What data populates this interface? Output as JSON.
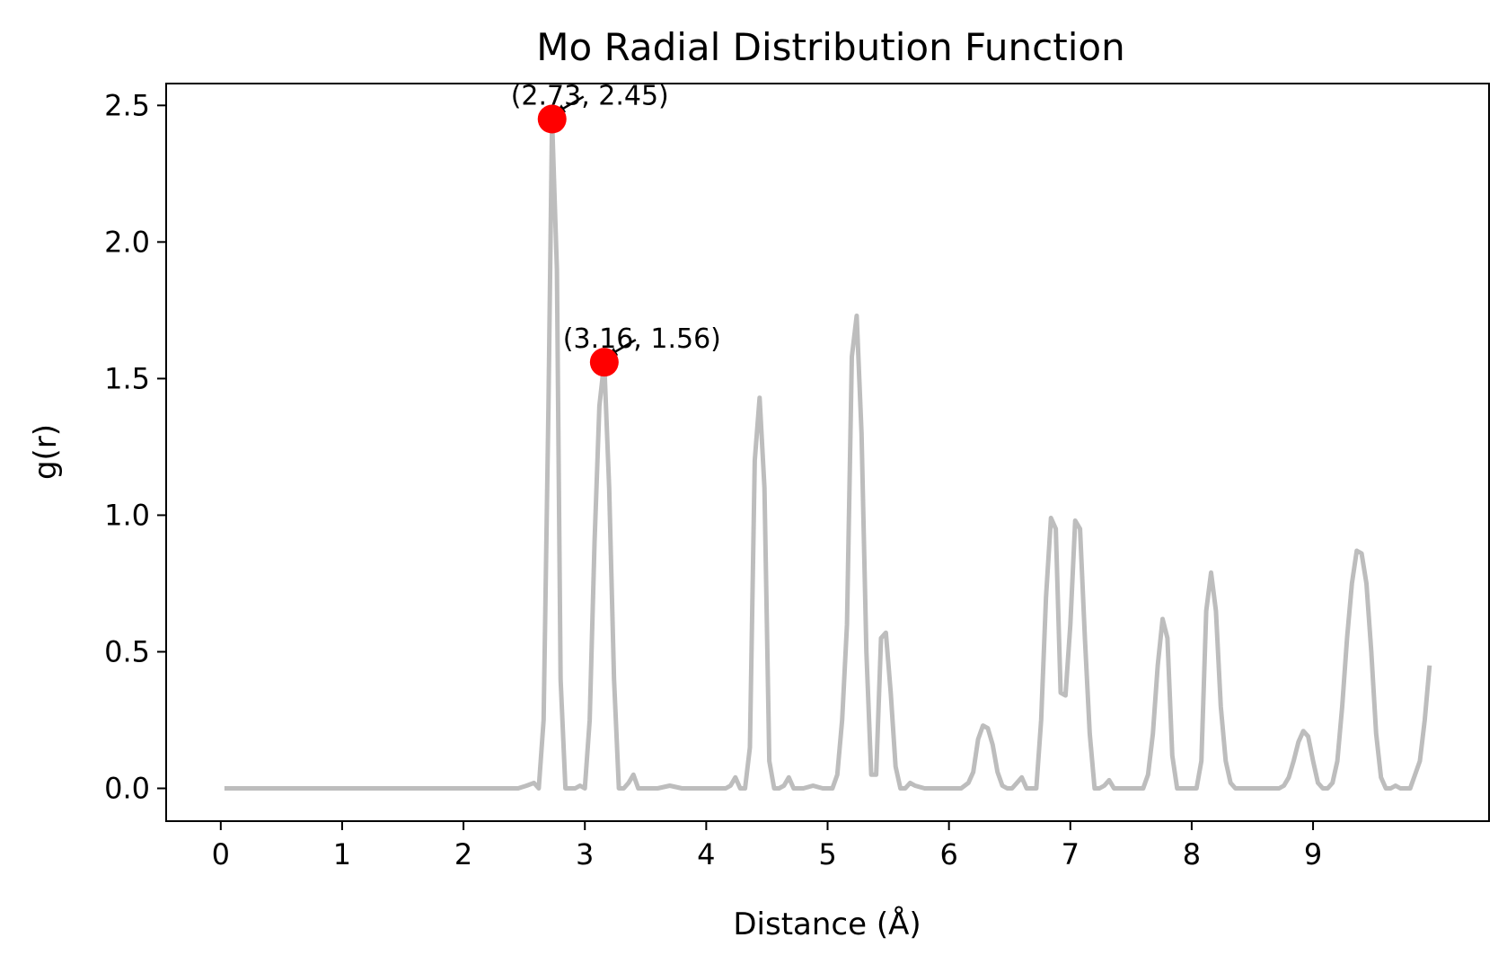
{
  "chart_data": {
    "type": "line",
    "title": "Mo Radial Distribution Function",
    "xlabel": "Distance (Å)",
    "ylabel": "g(r)",
    "xlim": [
      -0.45,
      10.45
    ],
    "ylim": [
      -0.12,
      2.58
    ],
    "xticks": [
      0,
      1,
      2,
      3,
      4,
      5,
      6,
      7,
      8,
      9
    ],
    "yticks": [
      0.0,
      0.5,
      1.0,
      1.5,
      2.0,
      2.5
    ],
    "xtick_labels": [
      "0",
      "1",
      "2",
      "3",
      "4",
      "5",
      "6",
      "7",
      "8",
      "9"
    ],
    "ytick_labels": [
      "0.0",
      "0.5",
      "1.0",
      "1.5",
      "2.0",
      "2.5"
    ],
    "grid": false,
    "line_color": "#bdbdbd",
    "marker_color": "#ff0000",
    "series": [
      {
        "x": [
          0.03,
          0.5,
          1.0,
          1.5,
          2.0,
          2.3,
          2.45,
          2.52,
          2.58,
          2.62,
          2.66,
          2.7,
          2.73,
          2.77,
          2.8,
          2.84,
          2.88,
          2.92,
          2.96,
          3.0,
          3.04,
          3.08,
          3.12,
          3.16,
          3.2,
          3.24,
          3.28,
          3.32,
          3.36,
          3.4,
          3.44,
          3.5,
          3.6,
          3.7,
          3.8,
          3.9,
          4.0,
          4.1,
          4.16,
          4.2,
          4.24,
          4.28,
          4.32,
          4.36,
          4.4,
          4.44,
          4.48,
          4.52,
          4.56,
          4.6,
          4.64,
          4.68,
          4.72,
          4.76,
          4.8,
          4.88,
          4.96,
          5.04,
          5.08,
          5.12,
          5.16,
          5.2,
          5.24,
          5.28,
          5.32,
          5.36,
          5.4,
          5.44,
          5.48,
          5.52,
          5.56,
          5.6,
          5.64,
          5.68,
          5.72,
          5.8,
          5.9,
          6.0,
          6.1,
          6.16,
          6.2,
          6.24,
          6.28,
          6.32,
          6.36,
          6.4,
          6.44,
          6.48,
          6.52,
          6.56,
          6.6,
          6.64,
          6.68,
          6.72,
          6.76,
          6.8,
          6.84,
          6.88,
          6.92,
          6.96,
          7.0,
          7.04,
          7.08,
          7.12,
          7.16,
          7.2,
          7.24,
          7.28,
          7.32,
          7.36,
          7.4,
          7.48,
          7.56,
          7.6,
          7.64,
          7.68,
          7.72,
          7.76,
          7.8,
          7.84,
          7.88,
          7.92,
          7.96,
          8.04,
          8.08,
          8.12,
          8.16,
          8.2,
          8.24,
          8.28,
          8.32,
          8.36,
          8.4,
          8.48,
          8.56,
          8.64,
          8.72,
          8.76,
          8.8,
          8.84,
          8.88,
          8.92,
          8.96,
          9.0,
          9.04,
          9.08,
          9.12,
          9.16,
          9.2,
          9.24,
          9.28,
          9.32,
          9.36,
          9.4,
          9.44,
          9.48,
          9.52,
          9.56,
          9.6,
          9.64,
          9.68,
          9.72,
          9.76,
          9.8,
          9.84,
          9.88,
          9.92,
          9.96
        ],
        "y": [
          0.0,
          0.0,
          0.0,
          0.0,
          0.0,
          0.0,
          0.0,
          0.01,
          0.02,
          0.0,
          0.25,
          1.4,
          2.45,
          1.9,
          0.4,
          0.0,
          0.0,
          0.0,
          0.01,
          0.0,
          0.25,
          0.9,
          1.4,
          1.56,
          1.1,
          0.4,
          0.0,
          0.0,
          0.02,
          0.05,
          0.0,
          0.0,
          0.0,
          0.01,
          0.0,
          0.0,
          0.0,
          0.0,
          0.0,
          0.01,
          0.04,
          0.0,
          0.0,
          0.15,
          1.2,
          1.43,
          1.1,
          0.1,
          0.0,
          0.0,
          0.01,
          0.04,
          0.0,
          0.0,
          0.0,
          0.01,
          0.0,
          0.0,
          0.05,
          0.25,
          0.6,
          1.58,
          1.73,
          1.3,
          0.5,
          0.05,
          0.05,
          0.55,
          0.57,
          0.35,
          0.08,
          0.0,
          0.0,
          0.02,
          0.01,
          0.0,
          0.0,
          0.0,
          0.0,
          0.02,
          0.06,
          0.18,
          0.23,
          0.22,
          0.16,
          0.06,
          0.01,
          0.0,
          0.0,
          0.02,
          0.04,
          0.0,
          0.0,
          0.0,
          0.25,
          0.7,
          0.99,
          0.95,
          0.35,
          0.34,
          0.6,
          0.98,
          0.95,
          0.55,
          0.2,
          0.0,
          0.0,
          0.01,
          0.03,
          0.0,
          0.0,
          0.0,
          0.0,
          0.0,
          0.05,
          0.2,
          0.45,
          0.62,
          0.55,
          0.12,
          0.0,
          0.0,
          0.0,
          0.0,
          0.1,
          0.65,
          0.79,
          0.65,
          0.3,
          0.1,
          0.02,
          0.0,
          0.0,
          0.0,
          0.0,
          0.0,
          0.0,
          0.01,
          0.04,
          0.1,
          0.17,
          0.21,
          0.19,
          0.1,
          0.02,
          0.0,
          0.0,
          0.02,
          0.1,
          0.3,
          0.55,
          0.75,
          0.87,
          0.86,
          0.75,
          0.5,
          0.2,
          0.04,
          0.0,
          0.0,
          0.01,
          0.0,
          0.0,
          0.0,
          0.05,
          0.1,
          0.25,
          0.45
        ]
      }
    ],
    "annotations": [
      {
        "x": 2.73,
        "y": 2.45,
        "text": "(2.73, 2.45)"
      },
      {
        "x": 3.16,
        "y": 1.56,
        "text": "(3.16, 1.56)"
      }
    ]
  }
}
